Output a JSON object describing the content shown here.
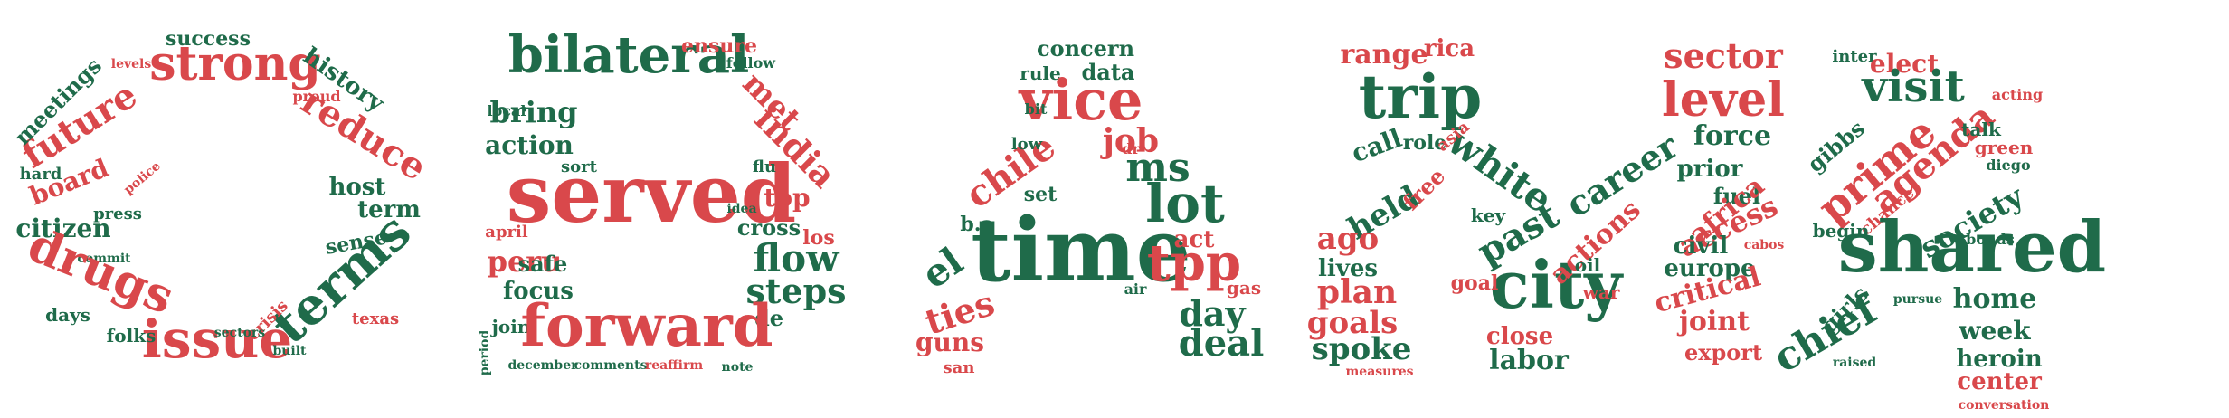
{
  "colors": {
    "green": "#1f6b4a",
    "red": "#d9484b",
    "background": "#ffffff"
  },
  "letters": [
    {
      "id": "letter-O",
      "words": [
        {
          "t": "strong",
          "c": "red"
        },
        {
          "t": "future",
          "c": "red"
        },
        {
          "t": "reduce",
          "c": "red"
        },
        {
          "t": "meetings",
          "c": "green"
        },
        {
          "t": "history",
          "c": "green"
        },
        {
          "t": "success",
          "c": "green"
        },
        {
          "t": "board",
          "c": "red"
        },
        {
          "t": "host",
          "c": "green"
        },
        {
          "t": "term",
          "c": "green"
        },
        {
          "t": "citizen",
          "c": "green"
        },
        {
          "t": "press",
          "c": "green"
        },
        {
          "t": "sense",
          "c": "green"
        },
        {
          "t": "hard",
          "c": "green"
        },
        {
          "t": "police",
          "c": "red"
        },
        {
          "t": "commit",
          "c": "green"
        },
        {
          "t": "drugs",
          "c": "red"
        },
        {
          "t": "terms",
          "c": "green"
        },
        {
          "t": "issue",
          "c": "red"
        },
        {
          "t": "days",
          "c": "green"
        },
        {
          "t": "folks",
          "c": "green"
        },
        {
          "t": "crisis",
          "c": "red"
        },
        {
          "t": "texas",
          "c": "red"
        },
        {
          "t": "built",
          "c": "green"
        },
        {
          "t": "sectors",
          "c": "green"
        },
        {
          "t": "proud",
          "c": "red"
        },
        {
          "t": "levels",
          "c": "red"
        }
      ]
    },
    {
      "id": "letter-B",
      "words": [
        {
          "t": "bilateral",
          "c": "green"
        },
        {
          "t": "met",
          "c": "red"
        },
        {
          "t": "india",
          "c": "red"
        },
        {
          "t": "bring",
          "c": "green"
        },
        {
          "t": "action",
          "c": "green"
        },
        {
          "t": "ensure",
          "c": "red"
        },
        {
          "t": "served",
          "c": "red"
        },
        {
          "t": "top",
          "c": "red"
        },
        {
          "t": "flu",
          "c": "green"
        },
        {
          "t": "local",
          "c": "green"
        },
        {
          "t": "sort",
          "c": "green"
        },
        {
          "t": "peru",
          "c": "red"
        },
        {
          "t": "safe",
          "c": "green"
        },
        {
          "t": "focus",
          "c": "green"
        },
        {
          "t": "april",
          "c": "red"
        },
        {
          "t": "cross",
          "c": "green"
        },
        {
          "t": "los",
          "c": "red"
        },
        {
          "t": "flow",
          "c": "green"
        },
        {
          "t": "steps",
          "c": "green"
        },
        {
          "t": "join",
          "c": "green"
        },
        {
          "t": "de",
          "c": "green"
        },
        {
          "t": "forward",
          "c": "red"
        },
        {
          "t": "december",
          "c": "green"
        },
        {
          "t": "comments",
          "c": "green"
        },
        {
          "t": "reaffirm",
          "c": "red"
        },
        {
          "t": "period",
          "c": "green"
        },
        {
          "t": "follow",
          "c": "green"
        },
        {
          "t": "idea",
          "c": "green"
        },
        {
          "t": "note",
          "c": "green"
        }
      ]
    },
    {
      "id": "letter-A1",
      "words": [
        {
          "t": "concern",
          "c": "green"
        },
        {
          "t": "rule",
          "c": "green"
        },
        {
          "t": "data",
          "c": "green"
        },
        {
          "t": "vice",
          "c": "red"
        },
        {
          "t": "job",
          "c": "red"
        },
        {
          "t": "chile",
          "c": "red"
        },
        {
          "t": "ms",
          "c": "green"
        },
        {
          "t": "low",
          "c": "green"
        },
        {
          "t": "lot",
          "c": "green"
        },
        {
          "t": "set",
          "c": "green"
        },
        {
          "t": "b.a",
          "c": "green"
        },
        {
          "t": "el",
          "c": "green"
        },
        {
          "t": "time",
          "c": "green"
        },
        {
          "t": "tpp",
          "c": "red"
        },
        {
          "t": "act",
          "c": "red"
        },
        {
          "t": "ties",
          "c": "red"
        },
        {
          "t": "day",
          "c": "green"
        },
        {
          "t": "guns",
          "c": "red"
        },
        {
          "t": "deal",
          "c": "green"
        },
        {
          "t": "gas",
          "c": "red"
        },
        {
          "t": "san",
          "c": "red"
        },
        {
          "t": "air",
          "c": "green"
        },
        {
          "t": "dr",
          "c": "red"
        },
        {
          "t": "bit",
          "c": "green"
        }
      ]
    },
    {
      "id": "letter-M",
      "words": [
        {
          "t": "range",
          "c": "red"
        },
        {
          "t": "rica",
          "c": "red"
        },
        {
          "t": "trip",
          "c": "green"
        },
        {
          "t": "call",
          "c": "green"
        },
        {
          "t": "role",
          "c": "green"
        },
        {
          "t": "held",
          "c": "green"
        },
        {
          "t": "ago",
          "c": "red"
        },
        {
          "t": "lives",
          "c": "green"
        },
        {
          "t": "plan",
          "c": "red"
        },
        {
          "t": "goals",
          "c": "red"
        },
        {
          "t": "spoke",
          "c": "green"
        },
        {
          "t": "measures",
          "c": "red"
        },
        {
          "t": "white",
          "c": "green"
        },
        {
          "t": "past",
          "c": "green"
        },
        {
          "t": "city",
          "c": "green"
        },
        {
          "t": "goal",
          "c": "red"
        },
        {
          "t": "close",
          "c": "red"
        },
        {
          "t": "labor",
          "c": "green"
        },
        {
          "t": "sector",
          "c": "red"
        },
        {
          "t": "level",
          "c": "red"
        },
        {
          "t": "career",
          "c": "green"
        },
        {
          "t": "actions",
          "c": "red"
        },
        {
          "t": "force",
          "c": "green"
        },
        {
          "t": "prior",
          "c": "green"
        },
        {
          "t": "fuel",
          "c": "green"
        },
        {
          "t": "africa",
          "c": "red"
        },
        {
          "t": "access",
          "c": "red"
        },
        {
          "t": "civil",
          "c": "green"
        },
        {
          "t": "europe",
          "c": "green"
        },
        {
          "t": "critical",
          "c": "red"
        },
        {
          "t": "joint",
          "c": "red"
        },
        {
          "t": "export",
          "c": "red"
        },
        {
          "t": "oil",
          "c": "green"
        },
        {
          "t": "war",
          "c": "red"
        },
        {
          "t": "key",
          "c": "green"
        },
        {
          "t": "free",
          "c": "red"
        },
        {
          "t": "asia",
          "c": "red"
        },
        {
          "t": "cabos",
          "c": "red"
        }
      ]
    },
    {
      "id": "letter-A2",
      "words": [
        {
          "t": "inter",
          "c": "green"
        },
        {
          "t": "elect",
          "c": "red"
        },
        {
          "t": "visit",
          "c": "green"
        },
        {
          "t": "agenda",
          "c": "red"
        },
        {
          "t": "prime",
          "c": "red"
        },
        {
          "t": "gibbs",
          "c": "green"
        },
        {
          "t": "talk",
          "c": "green"
        },
        {
          "t": "chance",
          "c": "red"
        },
        {
          "t": "society",
          "c": "green"
        },
        {
          "t": "shared",
          "c": "green"
        },
        {
          "t": "home",
          "c": "green"
        },
        {
          "t": "week",
          "c": "green"
        },
        {
          "t": "chief",
          "c": "green"
        },
        {
          "t": "heroin",
          "c": "green"
        },
        {
          "t": "center",
          "c": "red"
        },
        {
          "t": "conversation",
          "c": "red"
        },
        {
          "t": "girls",
          "c": "green"
        },
        {
          "t": "begin",
          "c": "green"
        },
        {
          "t": "raised",
          "c": "green"
        },
        {
          "t": "pursue",
          "c": "green"
        },
        {
          "t": "green",
          "c": "red"
        },
        {
          "t": "diego",
          "c": "green"
        },
        {
          "t": "acting",
          "c": "red"
        },
        {
          "t": "bonds",
          "c": "green"
        }
      ]
    }
  ]
}
